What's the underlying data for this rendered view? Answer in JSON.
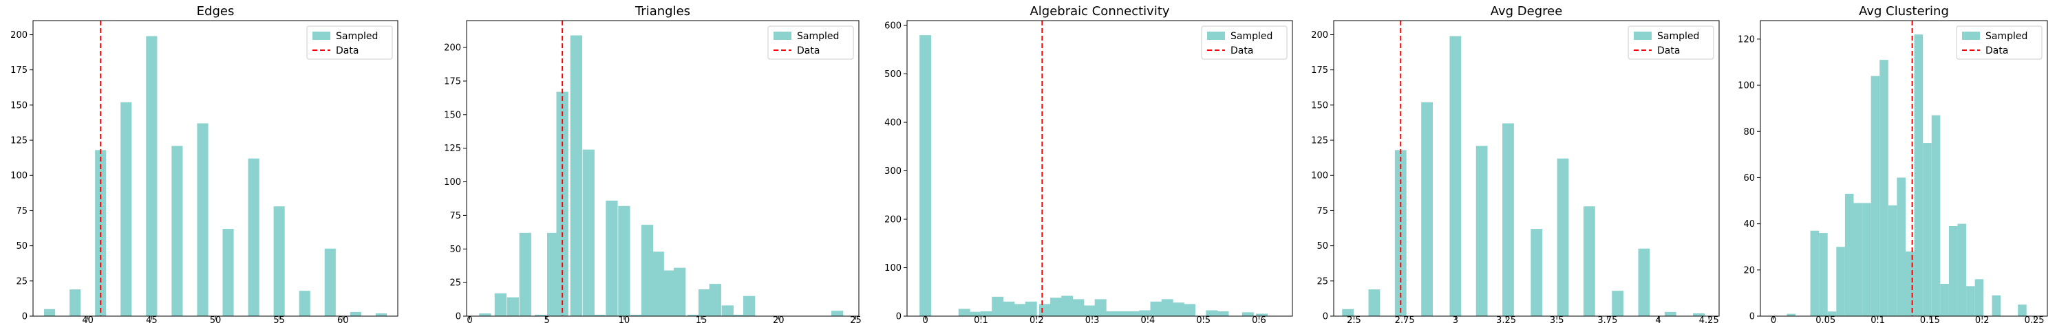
{
  "chart_data": [
    {
      "type": "bar",
      "title": "Edges",
      "xlim": [
        35.7,
        64.3
      ],
      "ylim": [
        0,
        210
      ],
      "xticks": [
        40,
        45,
        50,
        55,
        60
      ],
      "yticks": [
        0,
        25,
        50,
        75,
        100,
        125,
        150,
        175,
        200
      ],
      "bin_width": 0.87,
      "bins": [
        [
          37,
          5
        ],
        [
          39,
          19
        ],
        [
          41,
          118
        ],
        [
          43,
          152
        ],
        [
          45,
          199
        ],
        [
          47,
          121
        ],
        [
          49,
          137
        ],
        [
          51,
          62
        ],
        [
          53,
          112
        ],
        [
          55,
          78
        ],
        [
          57,
          18
        ],
        [
          59,
          48
        ],
        [
          61,
          3
        ],
        [
          63,
          2
        ]
      ],
      "data_line": 41,
      "legend": {
        "position": "upper right",
        "entries": [
          "Sampled",
          "Data"
        ]
      },
      "grid": false
    },
    {
      "type": "bar",
      "title": "Triangles",
      "xlim": [
        -0.2,
        25.2
      ],
      "ylim": [
        0,
        220
      ],
      "xticks": [
        0,
        5,
        10,
        15,
        20,
        25
      ],
      "yticks": [
        0,
        25,
        50,
        75,
        100,
        125,
        150,
        175,
        200
      ],
      "bin_width": 0.77,
      "bins": [
        [
          1,
          2
        ],
        [
          2,
          17
        ],
        [
          2.8,
          14
        ],
        [
          3.6,
          62
        ],
        [
          4.6,
          1
        ],
        [
          5.4,
          62
        ],
        [
          6,
          167
        ],
        [
          6.9,
          209
        ],
        [
          7.7,
          124
        ],
        [
          8.4,
          1
        ],
        [
          9.2,
          86
        ],
        [
          10,
          82
        ],
        [
          10.8,
          1
        ],
        [
          11.5,
          68
        ],
        [
          12.2,
          48
        ],
        [
          12.9,
          34
        ],
        [
          13.6,
          36
        ],
        [
          14.5,
          1
        ],
        [
          15.2,
          20
        ],
        [
          15.9,
          24
        ],
        [
          16.7,
          8
        ],
        [
          17.4,
          1
        ],
        [
          18.1,
          15
        ],
        [
          23.8,
          4
        ]
      ],
      "data_line": 6,
      "legend": {
        "position": "upper right",
        "entries": [
          "Sampled",
          "Data"
        ]
      },
      "grid": false
    },
    {
      "type": "bar",
      "title": "Algebraic Connectivity",
      "xlim": [
        -0.033,
        0.66
      ],
      "ylim": [
        0,
        610
      ],
      "xticks": [
        0.0,
        0.1,
        0.2,
        0.3,
        0.4,
        0.5,
        0.6
      ],
      "yticks": [
        0,
        100,
        200,
        300,
        400,
        500,
        600
      ],
      "bin_width": 0.021,
      "bins": [
        [
          0,
          580
        ],
        [
          0.07,
          15
        ],
        [
          0.09,
          9
        ],
        [
          0.11,
          10
        ],
        [
          0.13,
          40
        ],
        [
          0.15,
          30
        ],
        [
          0.17,
          25
        ],
        [
          0.19,
          30
        ],
        [
          0.215,
          25
        ],
        [
          0.235,
          38
        ],
        [
          0.255,
          42
        ],
        [
          0.275,
          35
        ],
        [
          0.295,
          22
        ],
        [
          0.315,
          35
        ],
        [
          0.335,
          10
        ],
        [
          0.355,
          10
        ],
        [
          0.375,
          10
        ],
        [
          0.395,
          12
        ],
        [
          0.415,
          30
        ],
        [
          0.435,
          35
        ],
        [
          0.455,
          28
        ],
        [
          0.475,
          25
        ],
        [
          0.515,
          12
        ],
        [
          0.535,
          10
        ],
        [
          0.58,
          8
        ],
        [
          0.605,
          5
        ]
      ],
      "data_line": 0.21,
      "legend": {
        "position": "upper right",
        "entries": [
          "Sampled",
          "Data"
        ]
      },
      "grid": false
    },
    {
      "type": "bar",
      "title": "Avg Degree",
      "xlim": [
        2.4,
        4.3
      ],
      "ylim": [
        0,
        210
      ],
      "xticks": [
        2.5,
        2.75,
        3.0,
        3.25,
        3.5,
        3.75,
        4.0,
        4.25
      ],
      "yticks": [
        0,
        25,
        50,
        75,
        100,
        125,
        150,
        175,
        200
      ],
      "bin_width": 0.057,
      "bins": [
        [
          2.47,
          5
        ],
        [
          2.6,
          19
        ],
        [
          2.73,
          118
        ],
        [
          2.86,
          152
        ],
        [
          3.0,
          199
        ],
        [
          3.13,
          121
        ],
        [
          3.26,
          137
        ],
        [
          3.4,
          62
        ],
        [
          3.53,
          112
        ],
        [
          3.66,
          78
        ],
        [
          3.8,
          18
        ],
        [
          3.93,
          48
        ],
        [
          4.06,
          3
        ],
        [
          4.2,
          2
        ]
      ],
      "data_line": 2.73,
      "legend": {
        "position": "upper right",
        "entries": [
          "Sampled",
          "Data"
        ]
      },
      "grid": false
    },
    {
      "type": "bar",
      "title": "Avg Clustering",
      "xlim": [
        -0.0125,
        0.2625
      ],
      "ylim": [
        0,
        128
      ],
      "xticks": [
        0.0,
        0.05,
        0.1,
        0.15,
        0.2,
        0.25
      ],
      "yticks": [
        0,
        20,
        40,
        60,
        80,
        100,
        120
      ],
      "bin_width": 0.0083,
      "bins": [
        [
          0.017,
          1
        ],
        [
          0.0395,
          37
        ],
        [
          0.0478,
          36
        ],
        [
          0.0561,
          2
        ],
        [
          0.0644,
          30
        ],
        [
          0.0727,
          53
        ],
        [
          0.081,
          49
        ],
        [
          0.0893,
          49
        ],
        [
          0.0976,
          104
        ],
        [
          0.1059,
          111
        ],
        [
          0.1142,
          48
        ],
        [
          0.1225,
          60
        ],
        [
          0.1308,
          28
        ],
        [
          0.1391,
          122
        ],
        [
          0.1474,
          75
        ],
        [
          0.1557,
          87
        ],
        [
          0.164,
          14
        ],
        [
          0.1723,
          39
        ],
        [
          0.1806,
          40
        ],
        [
          0.1889,
          13
        ],
        [
          0.1972,
          16
        ],
        [
          0.2136,
          9
        ],
        [
          0.2384,
          5
        ]
      ],
      "data_line": 0.133,
      "legend": {
        "position": "upper right",
        "entries": [
          "Sampled",
          "Data"
        ]
      },
      "grid": false
    }
  ],
  "colors": {
    "sampled": "#8cd3cf",
    "data_line": "#ff0000",
    "axis": "#000000",
    "legend_border": "#cccccc"
  }
}
